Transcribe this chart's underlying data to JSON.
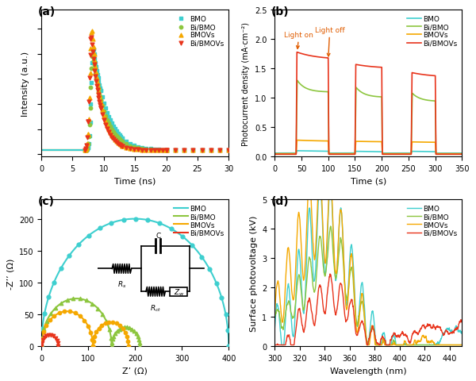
{
  "colors": {
    "BMO": "#3ECFCF",
    "Bi_BMO": "#8DC63F",
    "BMOVs": "#F5A800",
    "Bi_BMOVs": "#E8341C"
  },
  "panel_labels": [
    "(a)",
    "(b)",
    "(c)",
    "(d)"
  ],
  "a": {
    "xlabel": "Time (ns)",
    "ylabel": "Intensity (a.u.)",
    "xlim": [
      0,
      30
    ],
    "peak_time": 8.0
  },
  "b": {
    "xlabel": "Time (s)",
    "ylabel": "Photocurrent density (mA·cm⁻²)",
    "xlim": [
      0,
      350
    ],
    "ylim": [
      0,
      2.5
    ],
    "yticks": [
      0,
      0.5,
      1.0,
      1.5,
      2.0,
      2.5
    ],
    "light_on_label": "Light on",
    "light_off_label": "Light off"
  },
  "c": {
    "xlabel": "Z’ (Ω)",
    "ylabel": "-Z’’ (Ω)",
    "xlim": [
      0,
      400
    ],
    "ylim": [
      0,
      230
    ],
    "xticks": [
      0,
      100,
      200,
      300,
      400
    ],
    "yticks": [
      0,
      50,
      100,
      150,
      200
    ]
  },
  "d": {
    "xlabel": "Wavelength (nm)",
    "ylabel": "Surface photovoltage (kV)",
    "xlim": [
      300,
      450
    ],
    "ylim": [
      0,
      5.0
    ],
    "yticks": [
      0,
      1,
      2,
      3,
      4,
      5
    ]
  }
}
